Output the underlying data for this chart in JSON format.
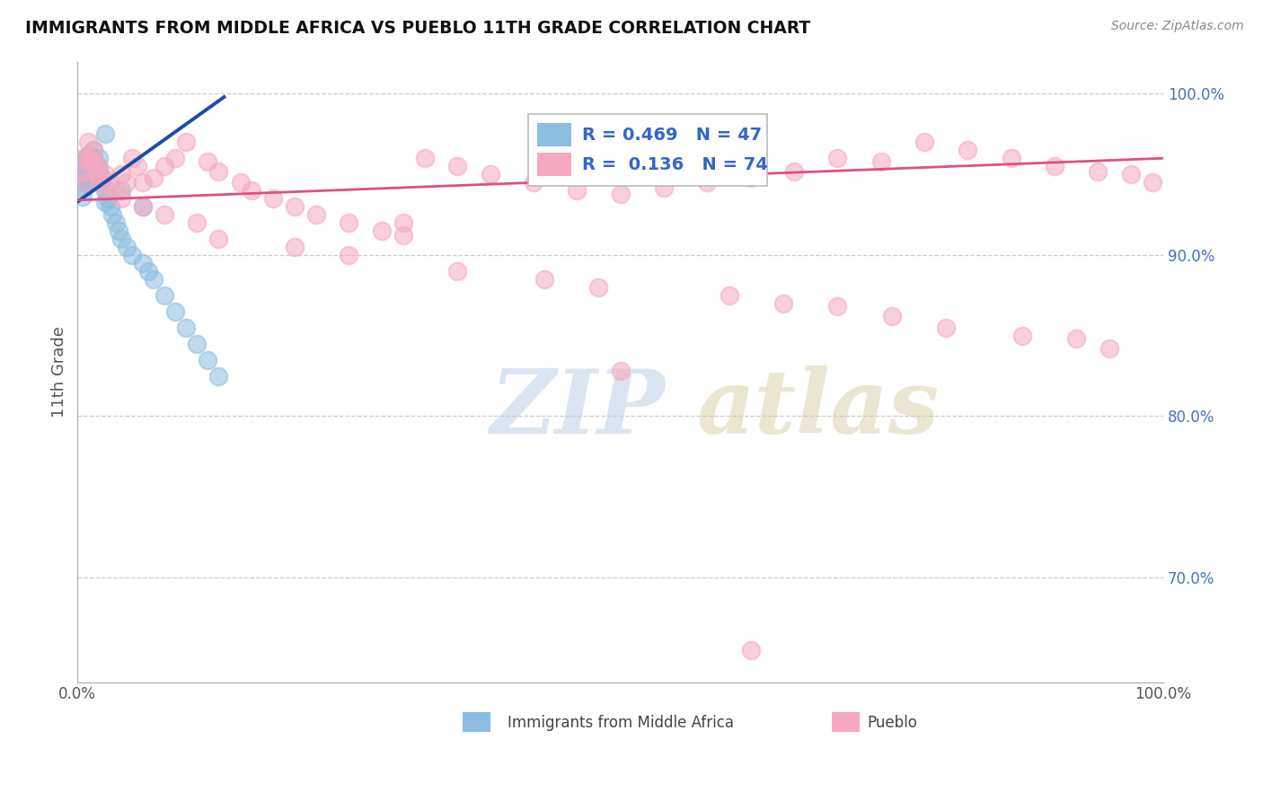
{
  "title": "IMMIGRANTS FROM MIDDLE AFRICA VS PUEBLO 11TH GRADE CORRELATION CHART",
  "source_text": "Source: ZipAtlas.com",
  "ylabel": "11th Grade",
  "xlim": [
    0.0,
    1.0
  ],
  "ylim": [
    0.635,
    1.02
  ],
  "yticks": [
    0.7,
    0.8,
    0.9,
    1.0
  ],
  "yticklabels": [
    "70.0%",
    "80.0%",
    "90.0%",
    "100.0%"
  ],
  "blue_color": "#8BBDE0",
  "pink_color": "#F5A8BF",
  "blue_line_color": "#1B4DA6",
  "pink_line_color": "#E05080",
  "legend_R_blue": "0.469",
  "legend_N_blue": "47",
  "legend_R_pink": "0.136",
  "legend_N_pink": "74",
  "blue_x": [
    0.005,
    0.005,
    0.005,
    0.005,
    0.005,
    0.008,
    0.008,
    0.008,
    0.01,
    0.01,
    0.01,
    0.01,
    0.012,
    0.012,
    0.012,
    0.015,
    0.015,
    0.015,
    0.015,
    0.018,
    0.018,
    0.02,
    0.02,
    0.02,
    0.023,
    0.025,
    0.025,
    0.028,
    0.03,
    0.032,
    0.035,
    0.038,
    0.04,
    0.045,
    0.05,
    0.06,
    0.065,
    0.07,
    0.08,
    0.09,
    0.1,
    0.11,
    0.12,
    0.13,
    0.06,
    0.04,
    0.025
  ],
  "blue_y": [
    0.958,
    0.953,
    0.948,
    0.942,
    0.936,
    0.96,
    0.955,
    0.945,
    0.962,
    0.956,
    0.95,
    0.944,
    0.958,
    0.952,
    0.946,
    0.965,
    0.96,
    0.955,
    0.948,
    0.955,
    0.948,
    0.96,
    0.952,
    0.945,
    0.948,
    0.94,
    0.933,
    0.935,
    0.93,
    0.925,
    0.92,
    0.915,
    0.91,
    0.905,
    0.9,
    0.895,
    0.89,
    0.885,
    0.875,
    0.865,
    0.855,
    0.845,
    0.835,
    0.825,
    0.93,
    0.94,
    0.975
  ],
  "pink_x": [
    0.005,
    0.005,
    0.008,
    0.01,
    0.01,
    0.012,
    0.015,
    0.015,
    0.018,
    0.02,
    0.02,
    0.025,
    0.025,
    0.03,
    0.035,
    0.04,
    0.045,
    0.05,
    0.055,
    0.06,
    0.07,
    0.08,
    0.09,
    0.1,
    0.12,
    0.13,
    0.15,
    0.16,
    0.18,
    0.2,
    0.22,
    0.25,
    0.28,
    0.3,
    0.32,
    0.35,
    0.38,
    0.42,
    0.46,
    0.5,
    0.54,
    0.58,
    0.62,
    0.66,
    0.7,
    0.74,
    0.78,
    0.82,
    0.86,
    0.9,
    0.94,
    0.97,
    0.99,
    0.35,
    0.43,
    0.48,
    0.6,
    0.65,
    0.7,
    0.75,
    0.8,
    0.87,
    0.92,
    0.95,
    0.11,
    0.13,
    0.2,
    0.25,
    0.04,
    0.06,
    0.08,
    0.3,
    0.5,
    0.62
  ],
  "pink_y": [
    0.96,
    0.952,
    0.945,
    0.97,
    0.96,
    0.958,
    0.965,
    0.958,
    0.95,
    0.955,
    0.948,
    0.95,
    0.942,
    0.945,
    0.94,
    0.95,
    0.945,
    0.96,
    0.955,
    0.945,
    0.948,
    0.955,
    0.96,
    0.97,
    0.958,
    0.952,
    0.945,
    0.94,
    0.935,
    0.93,
    0.925,
    0.92,
    0.915,
    0.912,
    0.96,
    0.955,
    0.95,
    0.945,
    0.94,
    0.938,
    0.942,
    0.945,
    0.948,
    0.952,
    0.96,
    0.958,
    0.97,
    0.965,
    0.96,
    0.955,
    0.952,
    0.95,
    0.945,
    0.89,
    0.885,
    0.88,
    0.875,
    0.87,
    0.868,
    0.862,
    0.855,
    0.85,
    0.848,
    0.842,
    0.92,
    0.91,
    0.905,
    0.9,
    0.935,
    0.93,
    0.925,
    0.92,
    0.828,
    0.655
  ],
  "blue_trend_x": [
    0.0,
    0.135
  ],
  "blue_trend_y_start": 0.933,
  "blue_trend_y_end": 0.998,
  "pink_trend_x": [
    0.0,
    1.0
  ],
  "pink_trend_y_start": 0.934,
  "pink_trend_y_end": 0.96,
  "dpi": 100
}
